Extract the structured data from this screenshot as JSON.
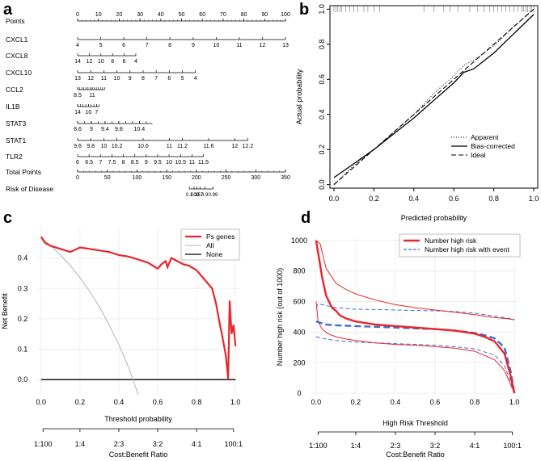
{
  "colors": {
    "red": "#e8262b",
    "blue": "#3c6fd0",
    "gray": "#b4b4b4",
    "black": "#000000",
    "grid": "#ebebeb"
  },
  "panel_labels": [
    "a",
    "b",
    "c",
    "d"
  ],
  "chart_data": [
    {
      "panel": "a",
      "type": "nomogram",
      "rows": [
        {
          "name": "Points",
          "ticks": [
            "0",
            "10",
            "20",
            "30",
            "40",
            "50",
            "60",
            "70",
            "80",
            "90",
            "100"
          ],
          "tick_values": [
            0,
            10,
            20,
            30,
            40,
            50,
            60,
            70,
            80,
            90,
            100
          ],
          "range": [
            0,
            100
          ],
          "labels_above": true
        },
        {
          "name": "CXCL1",
          "ticks": [
            "4",
            "5",
            "6",
            "7",
            "8",
            "9",
            "10",
            "11",
            "12",
            "13"
          ],
          "tick_values": [
            0,
            11.1,
            22.2,
            33.3,
            44.4,
            55.6,
            66.7,
            77.8,
            88.9,
            100
          ],
          "range": [
            0,
            100
          ]
        },
        {
          "name": "CXCL8",
          "ticks": [
            "14",
            "12",
            "10",
            "8",
            "6",
            "4"
          ],
          "tick_values": [
            0,
            5.6,
            11.2,
            16.8,
            22.4,
            28
          ],
          "range": [
            0,
            28
          ]
        },
        {
          "name": "CXCL10",
          "ticks": [
            "13",
            "12",
            "11",
            "10",
            "9",
            "8",
            "7",
            "6",
            "5",
            "4"
          ],
          "tick_values": [
            0,
            6.3,
            12.6,
            18.9,
            25.2,
            31.5,
            37.8,
            44.1,
            50.4,
            56.7
          ],
          "range": [
            0,
            56.7
          ]
        },
        {
          "name": "CCL2",
          "ticks": [
            "8.5",
            "11"
          ],
          "tick_values": [
            0,
            7
          ],
          "minor_ticks": [
            0,
            1,
            2,
            3,
            4,
            5,
            6,
            7,
            8,
            9,
            10,
            11,
            12,
            13
          ],
          "range": [
            0,
            13
          ]
        },
        {
          "name": "IL1B",
          "ticks": [
            "14",
            "10",
            "7"
          ],
          "tick_values": [
            0,
            5.2,
            9.1
          ],
          "minor_ticks": [
            0,
            1.3,
            2.6,
            3.9,
            5.2,
            6.5,
            7.8,
            9.1,
            10.4
          ],
          "range": [
            0,
            10.4
          ]
        },
        {
          "name": "STAT3",
          "ticks": [
            "8.6",
            "9",
            "9.4",
            "9.8",
            "10.4"
          ],
          "tick_values": [
            0,
            6.6,
            13.2,
            19.8,
            29.7
          ],
          "minor_ticks": [
            0,
            3.3,
            6.6,
            9.9,
            13.2,
            16.5,
            19.8,
            23.1,
            26.4,
            29.7,
            33
          ],
          "range": [
            0,
            36
          ]
        },
        {
          "name": "STAT1",
          "ticks": [
            "9.6",
            "9.8",
            "10",
            "10.2",
            "10.6",
            "11",
            "11.2",
            "11.6",
            "12",
            "12.2"
          ],
          "tick_values": [
            0,
            6.3,
            12.6,
            18.9,
            31.5,
            44.1,
            50.4,
            63,
            75.6,
            81.9
          ],
          "range": [
            0,
            81.9
          ]
        },
        {
          "name": "TLR2",
          "ticks": [
            "6",
            "6.5",
            "7",
            "7.5",
            "8",
            "8.5",
            "9",
            "9.5",
            "10",
            "10.5",
            "11",
            "11.5"
          ],
          "tick_values": [
            0,
            5.5,
            11,
            16.5,
            22,
            27.5,
            33,
            38.5,
            44,
            49.5,
            55,
            60.5
          ],
          "range": [
            0,
            60.5
          ]
        },
        {
          "name": "Total Points",
          "ticks": [
            "0",
            "50",
            "100",
            "150",
            "200",
            "250",
            "300",
            "350"
          ],
          "tick_values": [
            0,
            50,
            100,
            150,
            200,
            250,
            300,
            350
          ],
          "range": [
            0,
            350
          ],
          "scale": "total"
        },
        {
          "name": "Risk of Disease",
          "ticks": [
            "0.1",
            "0.3",
            "0.5",
            "0.7",
            "0.9",
            "0.99"
          ],
          "tick_values": [
            188,
            196,
            201,
            206,
            214,
            228
          ],
          "range": [
            188,
            228
          ],
          "scale": "total"
        }
      ]
    },
    {
      "panel": "b",
      "type": "line",
      "title": "",
      "xlabel": "Predicted probability",
      "ylabel": "Actual probability",
      "xlim": [
        -0.02,
        1.02
      ],
      "ylim": [
        -0.02,
        1.02
      ],
      "ticks": [
        "0.0",
        "0.2",
        "0.4",
        "0.6",
        "0.8",
        "1.0"
      ],
      "tick_values": [
        0,
        0.2,
        0.4,
        0.6,
        0.8,
        1.0
      ],
      "legend": [
        "Apparent",
        "Bias-corrected",
        "Ideal"
      ],
      "legend_position": "bottom-right",
      "series": [
        {
          "name": "Apparent",
          "style": "dotted",
          "x": [
            0,
            0.1,
            0.2,
            0.3,
            0.4,
            0.5,
            0.6,
            0.65,
            0.7,
            0.8,
            0.9,
            1.0
          ],
          "y": [
            0,
            0.11,
            0.2,
            0.3,
            0.4,
            0.52,
            0.62,
            0.68,
            0.71,
            0.79,
            0.9,
            1.0
          ]
        },
        {
          "name": "Bias-corrected",
          "style": "solid",
          "x": [
            0,
            0.1,
            0.2,
            0.3,
            0.4,
            0.5,
            0.6,
            0.65,
            0.7,
            0.8,
            0.9,
            1.0
          ],
          "y": [
            0.04,
            0.12,
            0.2,
            0.29,
            0.38,
            0.48,
            0.58,
            0.64,
            0.66,
            0.75,
            0.86,
            0.97
          ]
        },
        {
          "name": "Ideal",
          "style": "dashed",
          "x": [
            0,
            1
          ],
          "y": [
            0,
            1
          ]
        }
      ],
      "rug": [
        0.0,
        0.01,
        0.02,
        0.03,
        0.04,
        0.06,
        0.08,
        0.1,
        0.12,
        0.15,
        0.17,
        0.2,
        0.23,
        0.45,
        0.5,
        0.55,
        0.58,
        0.62,
        0.68,
        0.72,
        0.75,
        0.78,
        0.8,
        0.82,
        0.84,
        0.86,
        0.88,
        0.9,
        0.92,
        0.94,
        0.95,
        0.96,
        0.97,
        0.98,
        0.99,
        1.0
      ]
    },
    {
      "panel": "c",
      "type": "line",
      "title": "",
      "xlabel": "Threshold probability",
      "ylabel": "Net Benefit",
      "xlim": [
        -0.02,
        1.02
      ],
      "ylim": [
        -0.05,
        0.5
      ],
      "xticks": [
        "0.0",
        "0.2",
        "0.4",
        "0.6",
        "0.8",
        "1.0"
      ],
      "xtick_values": [
        0,
        0.2,
        0.4,
        0.6,
        0.8,
        1.0
      ],
      "yticks": [
        "0.0",
        "0.1",
        "0.2",
        "0.3",
        "0.4"
      ],
      "ytick_values": [
        0,
        0.1,
        0.2,
        0.3,
        0.4
      ],
      "secondary_axis": {
        "label": "Cost:Benefit Ratio",
        "ticks": [
          "1:100",
          "1:4",
          "2:3",
          "3:2",
          "4:1",
          "100:1"
        ],
        "tick_values": [
          0.01,
          0.2,
          0.4,
          0.6,
          0.8,
          0.99
        ]
      },
      "legend": [
        "Ps genes",
        "All",
        "None"
      ],
      "legend_position": "top-right",
      "series": [
        {
          "name": "Ps genes",
          "x": [
            0,
            0.02,
            0.05,
            0.1,
            0.15,
            0.2,
            0.25,
            0.3,
            0.35,
            0.4,
            0.45,
            0.5,
            0.55,
            0.6,
            0.62,
            0.64,
            0.65,
            0.67,
            0.7,
            0.73,
            0.76,
            0.8,
            0.84,
            0.88,
            0.9,
            0.92,
            0.93,
            0.95,
            0.96,
            0.962,
            0.97,
            0.98,
            0.99,
            1.0
          ],
          "y": [
            0.47,
            0.45,
            0.44,
            0.43,
            0.42,
            0.435,
            0.43,
            0.425,
            0.42,
            0.41,
            0.405,
            0.395,
            0.385,
            0.365,
            0.38,
            0.39,
            0.37,
            0.4,
            0.39,
            0.38,
            0.375,
            0.36,
            0.33,
            0.3,
            0.25,
            0.18,
            0.15,
            0.08,
            0.02,
            0.0,
            0.26,
            0.15,
            0.18,
            0.11
          ]
        },
        {
          "name": "All",
          "x": [
            0,
            0.05,
            0.1,
            0.15,
            0.2,
            0.25,
            0.3,
            0.35,
            0.4,
            0.45,
            0.5
          ],
          "y": [
            0.47,
            0.44,
            0.41,
            0.375,
            0.335,
            0.29,
            0.24,
            0.18,
            0.115,
            0.04,
            -0.05
          ]
        },
        {
          "name": "None",
          "x": [
            0,
            1
          ],
          "y": [
            0,
            0
          ]
        }
      ]
    },
    {
      "panel": "d",
      "type": "line",
      "title": "",
      "xlabel": "High Risk Threshold",
      "ylabel": "Number high risk (out of 1000)",
      "xlim": [
        -0.02,
        1.02
      ],
      "ylim": [
        -10,
        1010
      ],
      "xticks": [
        "0.0",
        "0.2",
        "0.4",
        "0.6",
        "0.8",
        "1.0"
      ],
      "xtick_values": [
        0,
        0.2,
        0.4,
        0.6,
        0.8,
        1.0
      ],
      "yticks": [
        "0",
        "200",
        "400",
        "600",
        "800",
        "1000"
      ],
      "ytick_values": [
        0,
        200,
        400,
        600,
        800,
        1000
      ],
      "secondary_axis": {
        "label": "Cost:Benefit Ratio",
        "ticks": [
          "1:100",
          "1:4",
          "2:3",
          "3:2",
          "4:1",
          "100:1"
        ],
        "tick_values": [
          0.01,
          0.2,
          0.4,
          0.6,
          0.8,
          0.99
        ]
      },
      "legend": [
        "Number high risk",
        "Number high risk with event"
      ],
      "legend_position": "top-right",
      "series": [
        {
          "name": "Number high risk",
          "x": [
            0,
            0.01,
            0.03,
            0.05,
            0.08,
            0.1,
            0.12,
            0.15,
            0.2,
            0.3,
            0.4,
            0.5,
            0.6,
            0.7,
            0.8,
            0.85,
            0.9,
            0.95,
            0.98,
            1.0
          ],
          "y": [
            1000,
            920,
            760,
            640,
            560,
            540,
            510,
            490,
            470,
            450,
            440,
            430,
            420,
            410,
            390,
            370,
            340,
            260,
            120,
            0
          ]
        },
        {
          "name": "Number high risk upper",
          "x": [
            0,
            0.02,
            0.05,
            0.1,
            0.15,
            0.2,
            0.3,
            0.4,
            0.5,
            0.6,
            0.7,
            0.8,
            0.9,
            0.95,
            0.98,
            1.0
          ],
          "y": [
            1000,
            980,
            820,
            720,
            680,
            650,
            610,
            580,
            560,
            545,
            530,
            515,
            495,
            490,
            485,
            480
          ]
        },
        {
          "name": "Number high risk lower",
          "x": [
            0,
            0.01,
            0.03,
            0.06,
            0.1,
            0.15,
            0.2,
            0.3,
            0.4,
            0.5,
            0.6,
            0.7,
            0.8,
            0.9,
            0.95,
            0.98,
            1.0
          ],
          "y": [
            600,
            470,
            420,
            390,
            370,
            355,
            345,
            330,
            320,
            315,
            305,
            295,
            275,
            220,
            150,
            60,
            0
          ]
        },
        {
          "name": "Number high risk with event",
          "x": [
            0,
            0.05,
            0.1,
            0.2,
            0.3,
            0.4,
            0.5,
            0.6,
            0.7,
            0.8,
            0.85,
            0.9,
            0.95,
            0.98,
            1.0
          ],
          "y": [
            470,
            450,
            445,
            440,
            435,
            430,
            425,
            420,
            410,
            395,
            380,
            360,
            300,
            150,
            0
          ]
        },
        {
          "name": "Number high risk with event upper",
          "x": [
            0,
            0.01,
            0.05,
            0.1,
            0.2,
            0.3,
            0.4,
            0.5,
            0.6,
            0.7,
            0.8,
            0.9,
            0.95,
            0.98,
            1.0
          ],
          "y": [
            560,
            585,
            575,
            560,
            550,
            548,
            545,
            542,
            540,
            535,
            525,
            505,
            495,
            488,
            485
          ]
        },
        {
          "name": "Number high risk with event lower",
          "x": [
            0,
            0.05,
            0.1,
            0.2,
            0.3,
            0.4,
            0.5,
            0.6,
            0.7,
            0.8,
            0.9,
            0.95,
            0.98,
            1.0
          ],
          "y": [
            370,
            355,
            345,
            335,
            330,
            325,
            320,
            315,
            305,
            290,
            250,
            180,
            80,
            0
          ]
        }
      ]
    }
  ]
}
